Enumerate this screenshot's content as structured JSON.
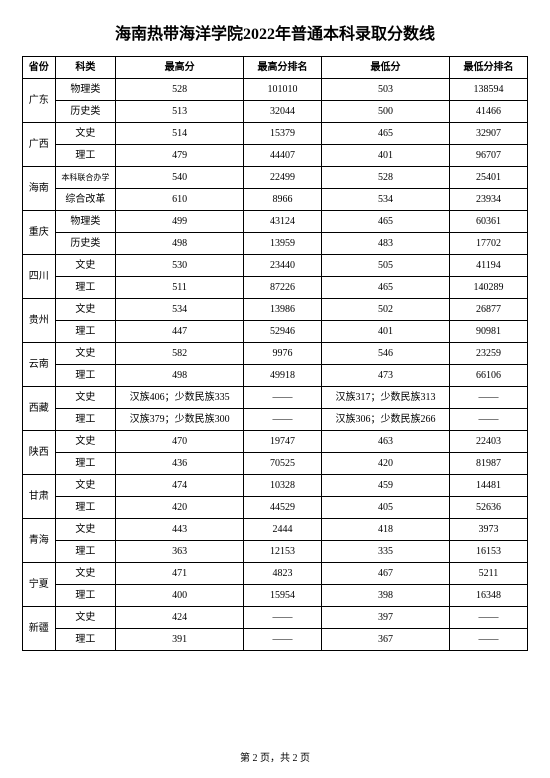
{
  "title": "海南热带海洋学院2022年普通本科录取分数线",
  "headers": {
    "province": "省份",
    "category": "科类",
    "high_score": "最高分",
    "high_rank": "最高分排名",
    "low_score": "最低分",
    "low_rank": "最低分排名"
  },
  "rows": [
    {
      "province": "广东",
      "rowspan": 2,
      "category": "物理类",
      "high_score": "528",
      "high_rank": "101010",
      "low_score": "503",
      "low_rank": "138594"
    },
    {
      "category": "历史类",
      "high_score": "513",
      "high_rank": "32044",
      "low_score": "500",
      "low_rank": "41466"
    },
    {
      "province": "广西",
      "rowspan": 2,
      "category": "文史",
      "high_score": "514",
      "high_rank": "15379",
      "low_score": "465",
      "low_rank": "32907"
    },
    {
      "category": "理工",
      "high_score": "479",
      "high_rank": "44407",
      "low_score": "401",
      "low_rank": "96707"
    },
    {
      "province": "海南",
      "rowspan": 2,
      "category": "本科联合办学",
      "cat_small": true,
      "high_score": "540",
      "high_rank": "22499",
      "low_score": "528",
      "low_rank": "25401"
    },
    {
      "category": "综合改革",
      "high_score": "610",
      "high_rank": "8966",
      "low_score": "534",
      "low_rank": "23934"
    },
    {
      "province": "重庆",
      "rowspan": 2,
      "category": "物理类",
      "high_score": "499",
      "high_rank": "43124",
      "low_score": "465",
      "low_rank": "60361"
    },
    {
      "category": "历史类",
      "high_score": "498",
      "high_rank": "13959",
      "low_score": "483",
      "low_rank": "17702"
    },
    {
      "province": "四川",
      "rowspan": 2,
      "category": "文史",
      "high_score": "530",
      "high_rank": "23440",
      "low_score": "505",
      "low_rank": "41194"
    },
    {
      "category": "理工",
      "high_score": "511",
      "high_rank": "87226",
      "low_score": "465",
      "low_rank": "140289"
    },
    {
      "province": "贵州",
      "rowspan": 2,
      "category": "文史",
      "high_score": "534",
      "high_rank": "13986",
      "low_score": "502",
      "low_rank": "26877"
    },
    {
      "category": "理工",
      "high_score": "447",
      "high_rank": "52946",
      "low_score": "401",
      "low_rank": "90981"
    },
    {
      "province": "云南",
      "rowspan": 2,
      "category": "文史",
      "high_score": "582",
      "high_rank": "9976",
      "low_score": "546",
      "low_rank": "23259"
    },
    {
      "category": "理工",
      "high_score": "498",
      "high_rank": "49918",
      "low_score": "473",
      "low_rank": "66106"
    },
    {
      "province": "西藏",
      "rowspan": 2,
      "category": "文史",
      "high_score": "汉族406；少数民族335",
      "high_rank": "——",
      "low_score": "汉族317；少数民族313",
      "low_rank": "——"
    },
    {
      "category": "理工",
      "high_score": "汉族379；少数民族300",
      "high_rank": "——",
      "low_score": "汉族306；少数民族266",
      "low_rank": "——"
    },
    {
      "province": "陕西",
      "rowspan": 2,
      "category": "文史",
      "high_score": "470",
      "high_rank": "19747",
      "low_score": "463",
      "low_rank": "22403"
    },
    {
      "category": "理工",
      "high_score": "436",
      "high_rank": "70525",
      "low_score": "420",
      "low_rank": "81987"
    },
    {
      "province": "甘肃",
      "rowspan": 2,
      "category": "文史",
      "high_score": "474",
      "high_rank": "10328",
      "low_score": "459",
      "low_rank": "14481"
    },
    {
      "category": "理工",
      "high_score": "420",
      "high_rank": "44529",
      "low_score": "405",
      "low_rank": "52636"
    },
    {
      "province": "青海",
      "rowspan": 2,
      "category": "文史",
      "high_score": "443",
      "high_rank": "2444",
      "low_score": "418",
      "low_rank": "3973"
    },
    {
      "category": "理工",
      "high_score": "363",
      "high_rank": "12153",
      "low_score": "335",
      "low_rank": "16153"
    },
    {
      "province": "宁夏",
      "rowspan": 2,
      "category": "文史",
      "high_score": "471",
      "high_rank": "4823",
      "low_score": "467",
      "low_rank": "5211"
    },
    {
      "category": "理工",
      "high_score": "400",
      "high_rank": "15954",
      "low_score": "398",
      "low_rank": "16348"
    },
    {
      "province": "新疆",
      "rowspan": 2,
      "category": "文史",
      "high_score": "424",
      "high_rank": "——",
      "low_score": "397",
      "low_rank": "——"
    },
    {
      "category": "理工",
      "high_score": "391",
      "high_rank": "——",
      "low_score": "367",
      "low_rank": "——"
    }
  ],
  "footer": "第 2 页，共 2 页"
}
